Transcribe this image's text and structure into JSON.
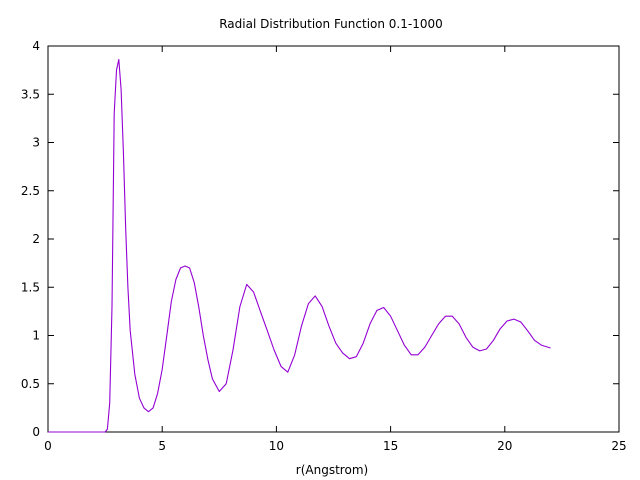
{
  "chart_data": {
    "type": "line",
    "title": "Radial Distribution Function 0.1-1000",
    "xlabel": "r(Angstrom)",
    "ylabel": "",
    "xlim": [
      0,
      25
    ],
    "ylim": [
      0,
      4
    ],
    "x_ticks": [
      "0",
      "5",
      "10",
      "15",
      "20",
      "25"
    ],
    "y_ticks": [
      "0",
      "0.5",
      "1",
      "1.5",
      "2",
      "2.5",
      "3",
      "3.5",
      "4"
    ],
    "grid": false,
    "legend": "none",
    "series_color": "#9400d3",
    "series": [
      {
        "x": [
          0,
          2.5,
          2.6,
          2.7,
          2.8,
          2.9,
          3.0,
          3.1,
          3.2,
          3.3,
          3.4,
          3.5,
          3.6,
          3.8,
          4.0,
          4.2,
          4.4,
          4.6,
          4.8,
          5.0,
          5.2,
          5.4,
          5.6,
          5.8,
          6.0,
          6.2,
          6.4,
          6.6,
          6.8,
          7.0,
          7.2,
          7.5,
          7.8,
          8.1,
          8.4,
          8.7,
          9.0,
          9.3,
          9.6,
          9.9,
          10.2,
          10.5,
          10.8,
          11.1,
          11.4,
          11.7,
          12.0,
          12.3,
          12.6,
          12.9,
          13.2,
          13.5,
          13.8,
          14.1,
          14.4,
          14.7,
          15.0,
          15.3,
          15.6,
          15.9,
          16.2,
          16.5,
          16.8,
          17.1,
          17.4,
          17.7,
          18.0,
          18.3,
          18.6,
          18.9,
          19.2,
          19.5,
          19.8,
          20.1,
          20.4,
          20.7,
          21.0,
          21.3,
          21.6,
          22.0
        ],
        "y": [
          0,
          0,
          0.03,
          0.3,
          1.3,
          3.3,
          3.75,
          3.86,
          3.55,
          2.9,
          2.1,
          1.5,
          1.05,
          0.6,
          0.35,
          0.25,
          0.21,
          0.25,
          0.4,
          0.65,
          1.0,
          1.35,
          1.58,
          1.7,
          1.72,
          1.7,
          1.55,
          1.3,
          1.0,
          0.75,
          0.55,
          0.42,
          0.5,
          0.85,
          1.3,
          1.53,
          1.45,
          1.25,
          1.05,
          0.85,
          0.68,
          0.62,
          0.8,
          1.1,
          1.33,
          1.41,
          1.3,
          1.1,
          0.92,
          0.82,
          0.76,
          0.78,
          0.92,
          1.12,
          1.26,
          1.29,
          1.2,
          1.05,
          0.9,
          0.8,
          0.8,
          0.88,
          1.0,
          1.12,
          1.2,
          1.2,
          1.12,
          0.98,
          0.88,
          0.84,
          0.86,
          0.95,
          1.07,
          1.15,
          1.17,
          1.14,
          1.05,
          0.95,
          0.9,
          0.87
        ]
      }
    ]
  }
}
